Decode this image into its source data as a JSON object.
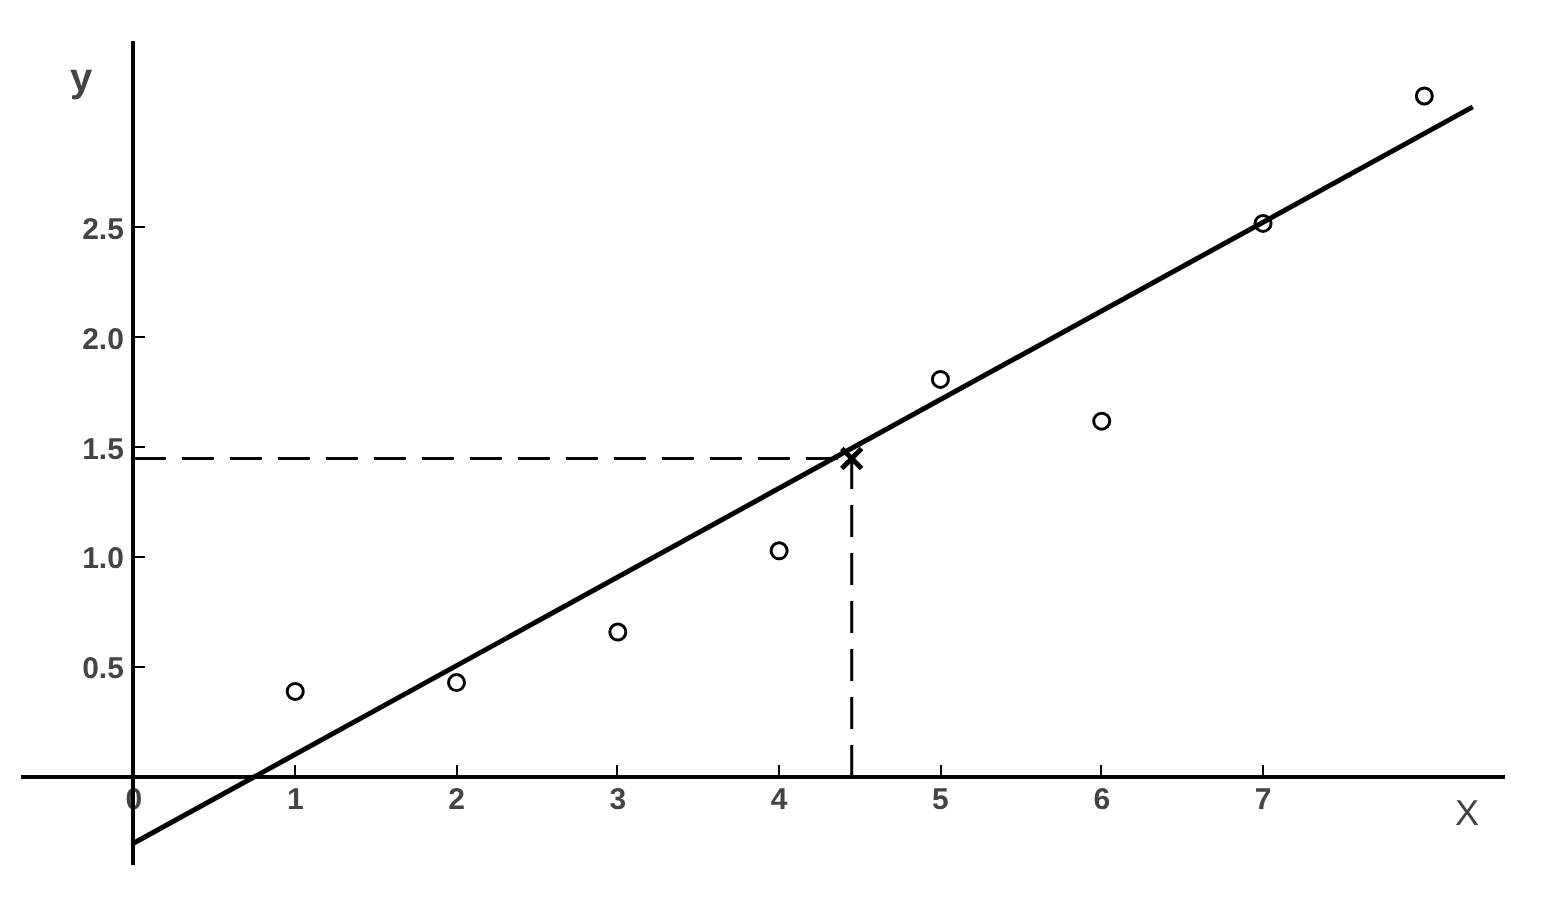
{
  "chart_data": {
    "type": "scatter",
    "xlabel": "X",
    "ylabel": "y",
    "marker": "circle",
    "grid": false,
    "xlim": [
      -0.7,
      8.5
    ],
    "ylim": [
      -0.4,
      3.35
    ],
    "xticks": [
      0,
      1,
      2,
      3,
      4,
      5,
      6,
      7
    ],
    "yticks": [
      {
        "value": 0.5,
        "label": "0.5"
      },
      {
        "value": 1,
        "label": "1.0"
      },
      {
        "value": 1.5,
        "label": "1.5"
      },
      {
        "value": 2,
        "label": "2.0"
      },
      {
        "value": 2.5,
        "label": "2.5"
      }
    ],
    "series": [
      {
        "color": "#000000",
        "x": [
          1,
          2,
          3,
          4,
          5,
          6,
          7,
          8
        ],
        "values": [
          0.39,
          0.43,
          0.66,
          1.03,
          1.81,
          1.62,
          2.52,
          3.1
        ]
      },
      {
        "type": "line",
        "color": "#000000",
        "marker": "none",
        "x": [
          0,
          8.3
        ],
        "values": [
          -0.3,
          3.05
        ]
      },
      {
        "type": "scatter",
        "color": "#000000",
        "marker": "cross",
        "x": [
          4.45
        ],
        "values": [
          1.45
        ]
      }
    ],
    "ref_lines": [
      {
        "axis": "x",
        "value": 4.45,
        "line_style": "dashed"
      },
      {
        "axis": "y",
        "value": 1.45,
        "line_style": "dashed"
      }
    ]
  }
}
